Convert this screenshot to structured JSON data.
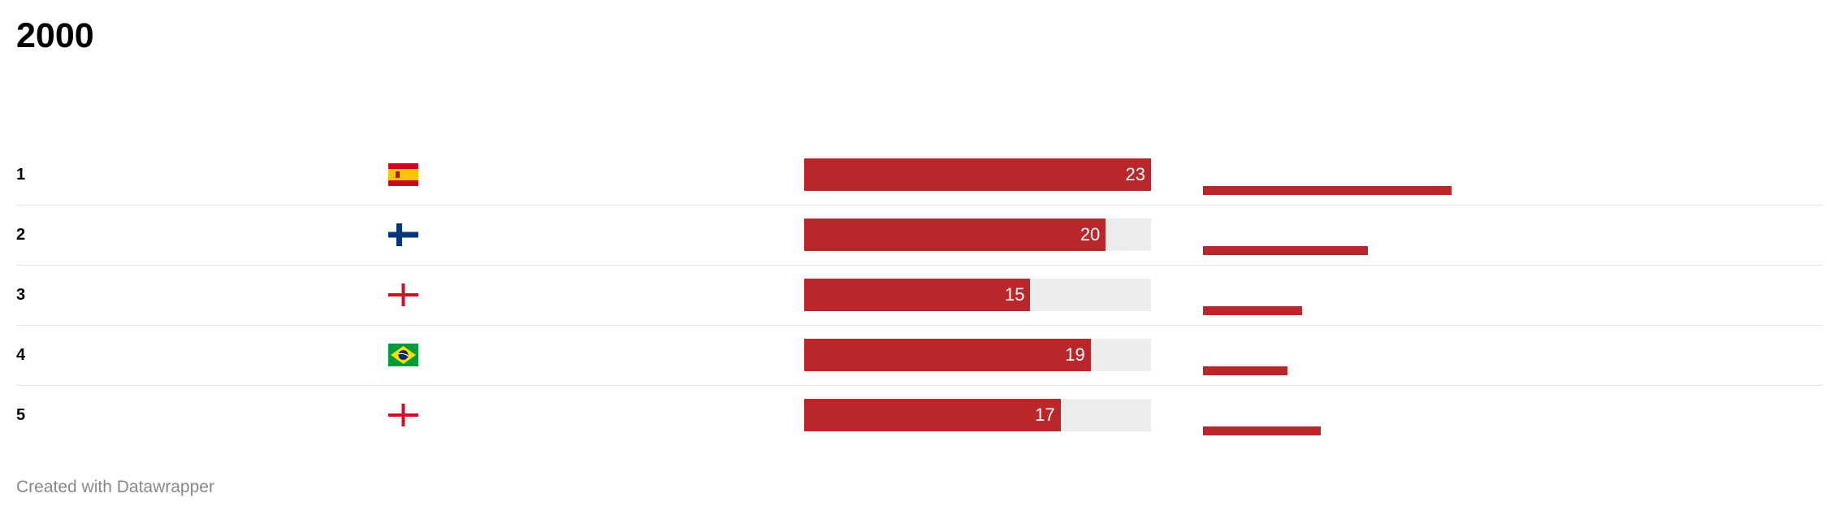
{
  "title": "2000",
  "footer": "Created with Datawrapper",
  "colors": {
    "bar": "#b9272b",
    "track": "#ececec",
    "divider": "#e2e2e2"
  },
  "rows": [
    {
      "rank": "1",
      "flag": "spain-flag-icon",
      "value": "23"
    },
    {
      "rank": "2",
      "flag": "finland-flag-icon",
      "value": "20"
    },
    {
      "rank": "3",
      "flag": "england-flag-icon",
      "value": "15"
    },
    {
      "rank": "4",
      "flag": "brazil-flag-icon",
      "value": "19"
    },
    {
      "rank": "5",
      "flag": "england-flag-icon",
      "value": "17"
    }
  ],
  "chart_data": {
    "type": "bar",
    "categories": [
      "1",
      "2",
      "3",
      "4",
      "5"
    ],
    "values": [
      23,
      20,
      15,
      19,
      17
    ],
    "max": 23,
    "secondary_bar_fraction": [
      0.4,
      0.265,
      0.16,
      0.136,
      0.19
    ],
    "title": "2000"
  }
}
